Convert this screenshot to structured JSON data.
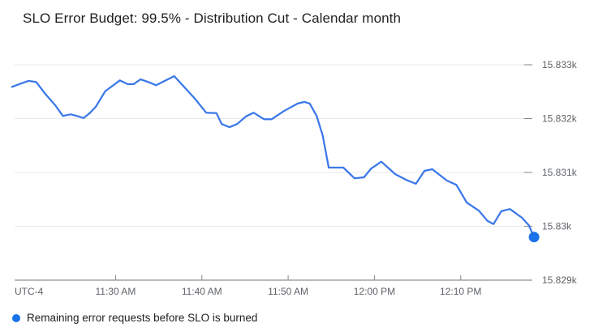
{
  "header": {
    "title": "SLO Error Budget: 99.5% - Distribution Cut - Calendar month"
  },
  "legend": {
    "label": "Remaining error requests before SLO is burned",
    "marker_color": "#1a73e8"
  },
  "colors": {
    "line": "#3b78e8",
    "end_dot": "#1a73e8",
    "grid": "#e9eaec",
    "axis": "#757575",
    "tick": "#80868b",
    "label": "#5f6368",
    "title": "#202124"
  },
  "chart_data": {
    "type": "line",
    "title": "SLO Error Budget: 99.5% - Distribution Cut - Calendar month",
    "xlabel": "",
    "ylabel": "",
    "x_unit": "minutes after 11:00 AM (UTC-4)",
    "utc_label": "UTC-4",
    "grid": true,
    "legend_position": "bottom-left",
    "x_range": [
      18.3,
      78.3
    ],
    "y_range": [
      15829,
      15833
    ],
    "x_ticks": [
      {
        "t": 30,
        "label": "11:30 AM"
      },
      {
        "t": 40,
        "label": "11:40 AM"
      },
      {
        "t": 50,
        "label": "11:50 AM"
      },
      {
        "t": 60,
        "label": "12:00 PM"
      },
      {
        "t": 70,
        "label": "12:10 PM"
      }
    ],
    "y_ticks": [
      {
        "v": 15833,
        "label": "15.833k"
      },
      {
        "v": 15832,
        "label": "15.832k"
      },
      {
        "v": 15831,
        "label": "15.831k"
      },
      {
        "v": 15830,
        "label": "15.83k"
      },
      {
        "v": 15829,
        "label": "15.829k"
      }
    ],
    "end_dot": true,
    "series": [
      {
        "name": "Remaining error requests before SLO is burned",
        "color": "#3b78e8",
        "points": [
          [
            18.0,
            15832.59
          ],
          [
            19.0,
            15832.65
          ],
          [
            19.9,
            15832.7
          ],
          [
            20.8,
            15832.68
          ],
          [
            21.8,
            15832.47
          ],
          [
            23.0,
            15832.25
          ],
          [
            23.9,
            15832.05
          ],
          [
            24.8,
            15832.08
          ],
          [
            25.5,
            15832.05
          ],
          [
            26.3,
            15832.01
          ],
          [
            27.0,
            15832.1
          ],
          [
            27.7,
            15832.22
          ],
          [
            28.8,
            15832.51
          ],
          [
            30.5,
            15832.71
          ],
          [
            31.4,
            15832.64
          ],
          [
            32.1,
            15832.64
          ],
          [
            32.9,
            15832.73
          ],
          [
            33.8,
            15832.68
          ],
          [
            34.7,
            15832.62
          ],
          [
            36.8,
            15832.79
          ],
          [
            39.2,
            15832.37
          ],
          [
            40.5,
            15832.11
          ],
          [
            41.7,
            15832.1
          ],
          [
            42.3,
            15831.9
          ],
          [
            43.2,
            15831.84
          ],
          [
            44.1,
            15831.9
          ],
          [
            45.1,
            15832.04
          ],
          [
            46.0,
            15832.11
          ],
          [
            47.2,
            15831.99
          ],
          [
            48.1,
            15831.99
          ],
          [
            49.5,
            15832.14
          ],
          [
            51.1,
            15832.28
          ],
          [
            51.9,
            15832.31
          ],
          [
            52.5,
            15832.28
          ],
          [
            53.3,
            15832.05
          ],
          [
            54.0,
            15831.69
          ],
          [
            54.7,
            15831.09
          ],
          [
            56.4,
            15831.09
          ],
          [
            57.7,
            15830.89
          ],
          [
            58.8,
            15830.91
          ],
          [
            59.6,
            15831.07
          ],
          [
            60.8,
            15831.2
          ],
          [
            62.4,
            15830.97
          ],
          [
            63.7,
            15830.86
          ],
          [
            64.8,
            15830.79
          ],
          [
            65.8,
            15831.03
          ],
          [
            66.7,
            15831.06
          ],
          [
            68.4,
            15830.85
          ],
          [
            69.5,
            15830.77
          ],
          [
            70.7,
            15830.44
          ],
          [
            72.1,
            15830.29
          ],
          [
            73.1,
            15830.1
          ],
          [
            73.8,
            15830.04
          ],
          [
            74.7,
            15830.28
          ],
          [
            75.7,
            15830.32
          ],
          [
            77.1,
            15830.16
          ],
          [
            77.9,
            15830.02
          ],
          [
            78.5,
            15829.8
          ]
        ]
      }
    ]
  }
}
